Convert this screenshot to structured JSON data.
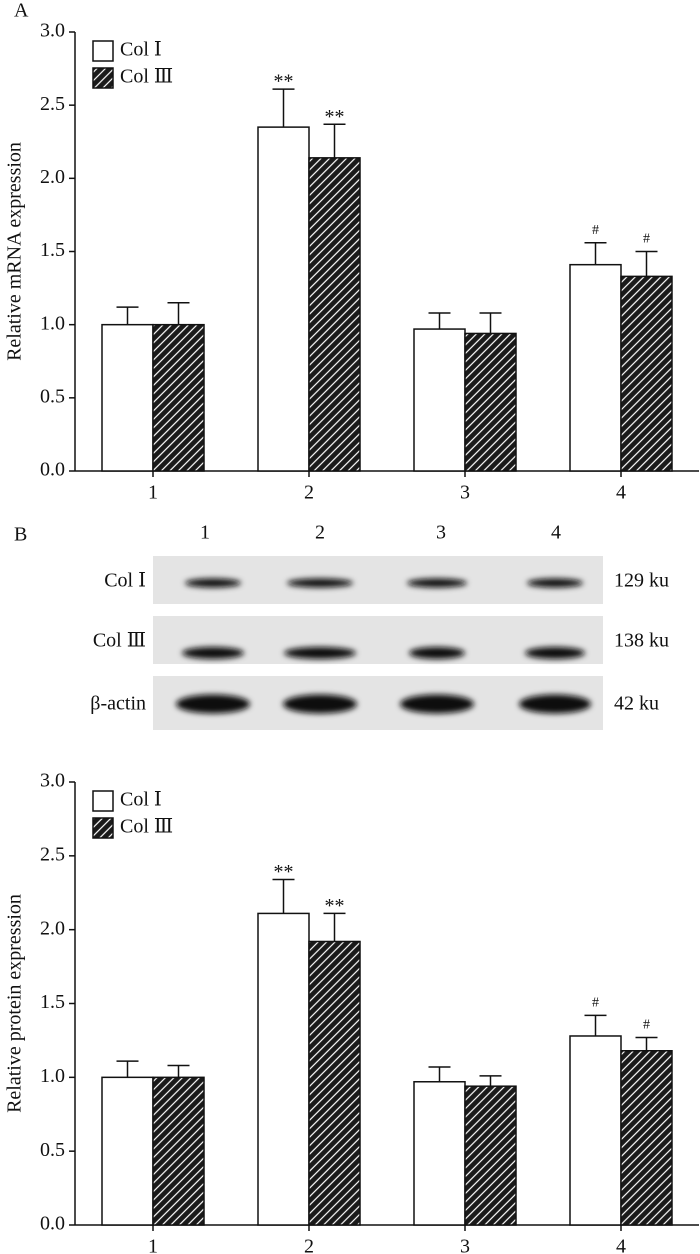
{
  "panel_labels": [
    "A",
    "B"
  ],
  "chart_data": [
    {
      "type": "bar",
      "ylabel": "Relative mRNA expression",
      "categories": [
        "1",
        "2",
        "3",
        "4"
      ],
      "series": [
        {
          "name": "Col Ⅰ",
          "color": "#ffffff",
          "hatch": false,
          "values": [
            1.0,
            2.35,
            0.97,
            1.41
          ],
          "errors": [
            0.12,
            0.26,
            0.11,
            0.15
          ],
          "significance": [
            null,
            "**",
            null,
            "#"
          ]
        },
        {
          "name": "Col Ⅲ",
          "color": "#1a1a1a",
          "hatch": true,
          "values": [
            1.0,
            2.14,
            0.94,
            1.33
          ],
          "errors": [
            0.15,
            0.23,
            0.14,
            0.17
          ],
          "significance": [
            null,
            "**",
            null,
            "#"
          ]
        }
      ],
      "ylim": [
        0,
        3
      ],
      "yticks": [
        {
          "value": 0,
          "label": "0.0"
        },
        {
          "value": 0.5,
          "label": "0.5"
        },
        {
          "value": 1,
          "label": "1.0"
        },
        {
          "value": 1.5,
          "label": "1.5"
        },
        {
          "value": 2,
          "label": "2.0"
        },
        {
          "value": 2.5,
          "label": "2.5"
        },
        {
          "value": 3,
          "label": "3.0"
        }
      ],
      "legend": "upper left",
      "grid": false
    },
    {
      "type": "bar",
      "ylabel": "Relative protein expression",
      "categories": [
        "1",
        "2",
        "3",
        "4"
      ],
      "series": [
        {
          "name": "Col Ⅰ",
          "color": "#ffffff",
          "hatch": false,
          "values": [
            1.0,
            2.11,
            0.97,
            1.28
          ],
          "errors": [
            0.11,
            0.23,
            0.1,
            0.14
          ],
          "significance": [
            null,
            "**",
            null,
            "#"
          ]
        },
        {
          "name": "Col Ⅲ",
          "color": "#1a1a1a",
          "hatch": true,
          "values": [
            1.0,
            1.92,
            0.94,
            1.18
          ],
          "errors": [
            0.08,
            0.19,
            0.07,
            0.09
          ],
          "significance": [
            null,
            "**",
            null,
            "#"
          ]
        }
      ],
      "ylim": [
        0,
        3
      ],
      "yticks": [
        {
          "value": 0,
          "label": "0.0"
        },
        {
          "value": 0.5,
          "label": "0.5"
        },
        {
          "value": 1,
          "label": "1.0"
        },
        {
          "value": 1.5,
          "label": "1.5"
        },
        {
          "value": 2,
          "label": "2.0"
        },
        {
          "value": 2.5,
          "label": "2.5"
        },
        {
          "value": 3,
          "label": "3.0"
        }
      ],
      "legend": "upper left",
      "grid": false
    }
  ],
  "blot": {
    "lanes": [
      "1",
      "2",
      "3",
      "4"
    ],
    "rows": [
      {
        "protein": "Col Ⅰ",
        "size": "129 ku"
      },
      {
        "protein": "Col Ⅲ",
        "size": "138 ku"
      },
      {
        "protein": "β-actin",
        "size": "42 ku"
      }
    ]
  }
}
